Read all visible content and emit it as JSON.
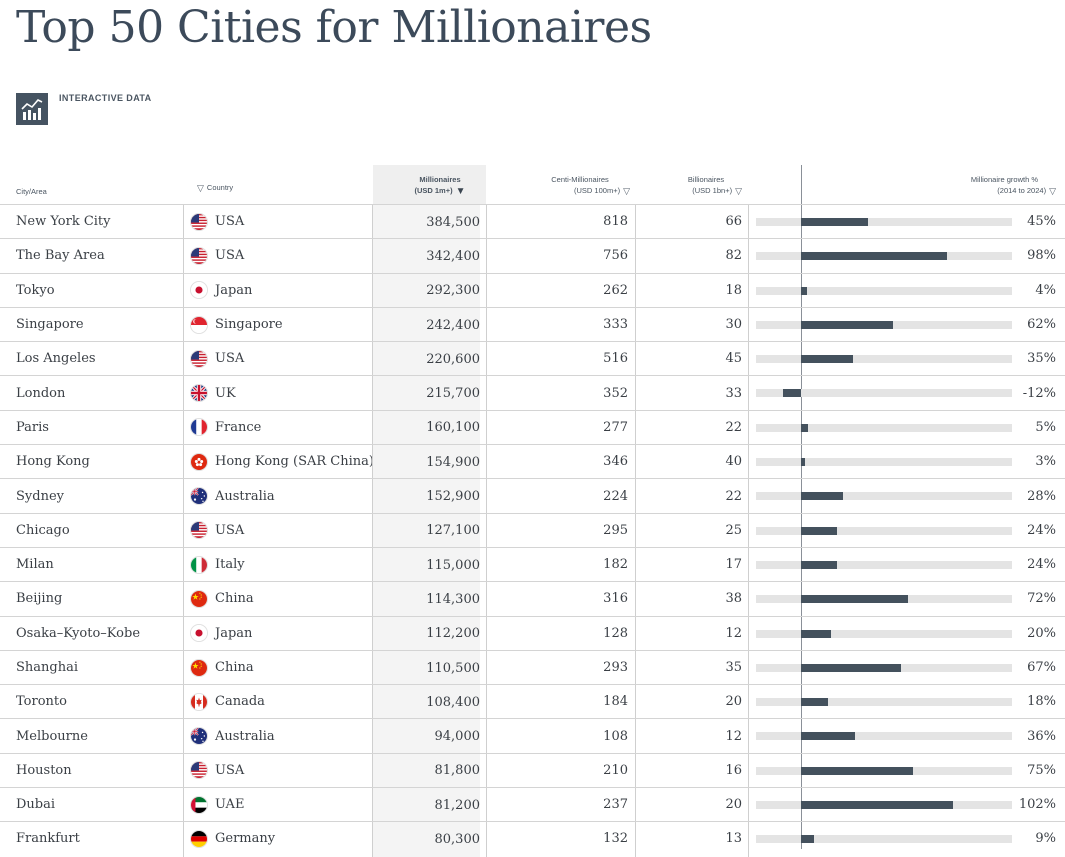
{
  "title": "Top 50 Cities for Millionaires",
  "interactive_label": "INTERACTIVE DATA",
  "headers": {
    "city": "City/Area",
    "country": "Country",
    "millionaires_1": "Millionaires",
    "millionaires_2": "(USD 1m+)",
    "centi_1": "Centi-Millionaires",
    "centi_2": "(USD 100m+)",
    "billionaires_1": "Billionaires",
    "billionaires_2": "(USD 1bn+)",
    "growth_1": "Millionaire growth %",
    "growth_2": "(2014 to 2024)"
  },
  "colors": {
    "bar": "#44515d",
    "track": "#e4e4e4",
    "accent": "#455361"
  },
  "rows": [
    {
      "city": "New York City",
      "country": "USA",
      "flag": "us",
      "millionaires": "384,500",
      "centi": "818",
      "billionaires": "66",
      "growth": "45%",
      "growth_value": 45
    },
    {
      "city": "The Bay Area",
      "country": "USA",
      "flag": "us",
      "millionaires": "342,400",
      "centi": "756",
      "billionaires": "82",
      "growth": "98%",
      "growth_value": 98
    },
    {
      "city": "Tokyo",
      "country": "Japan",
      "flag": "jp",
      "millionaires": "292,300",
      "centi": "262",
      "billionaires": "18",
      "growth": "4%",
      "growth_value": 4
    },
    {
      "city": "Singapore",
      "country": "Singapore",
      "flag": "sg",
      "millionaires": "242,400",
      "centi": "333",
      "billionaires": "30",
      "growth": "62%",
      "growth_value": 62
    },
    {
      "city": "Los Angeles",
      "country": "USA",
      "flag": "us",
      "millionaires": "220,600",
      "centi": "516",
      "billionaires": "45",
      "growth": "35%",
      "growth_value": 35
    },
    {
      "city": "London",
      "country": "UK",
      "flag": "uk",
      "millionaires": "215,700",
      "centi": "352",
      "billionaires": "33",
      "growth": "-12%",
      "growth_value": -12
    },
    {
      "city": "Paris",
      "country": "France",
      "flag": "fr",
      "millionaires": "160,100",
      "centi": "277",
      "billionaires": "22",
      "growth": "5%",
      "growth_value": 5
    },
    {
      "city": "Hong Kong",
      "country": "Hong Kong (SAR China)",
      "flag": "hk",
      "millionaires": "154,900",
      "centi": "346",
      "billionaires": "40",
      "growth": "3%",
      "growth_value": 3
    },
    {
      "city": "Sydney",
      "country": "Australia",
      "flag": "au",
      "millionaires": "152,900",
      "centi": "224",
      "billionaires": "22",
      "growth": "28%",
      "growth_value": 28
    },
    {
      "city": "Chicago",
      "country": "USA",
      "flag": "us",
      "millionaires": "127,100",
      "centi": "295",
      "billionaires": "25",
      "growth": "24%",
      "growth_value": 24
    },
    {
      "city": "Milan",
      "country": "Italy",
      "flag": "it",
      "millionaires": "115,000",
      "centi": "182",
      "billionaires": "17",
      "growth": "24%",
      "growth_value": 24
    },
    {
      "city": "Beijing",
      "country": "China",
      "flag": "cn",
      "millionaires": "114,300",
      "centi": "316",
      "billionaires": "38",
      "growth": "72%",
      "growth_value": 72
    },
    {
      "city": "Osaka–Kyoto–Kobe",
      "country": "Japan",
      "flag": "jp",
      "millionaires": "112,200",
      "centi": "128",
      "billionaires": "12",
      "growth": "20%",
      "growth_value": 20
    },
    {
      "city": "Shanghai",
      "country": "China",
      "flag": "cn",
      "millionaires": "110,500",
      "centi": "293",
      "billionaires": "35",
      "growth": "67%",
      "growth_value": 67
    },
    {
      "city": "Toronto",
      "country": "Canada",
      "flag": "ca",
      "millionaires": "108,400",
      "centi": "184",
      "billionaires": "20",
      "growth": "18%",
      "growth_value": 18
    },
    {
      "city": "Melbourne",
      "country": "Australia",
      "flag": "au",
      "millionaires": "94,000",
      "centi": "108",
      "billionaires": "12",
      "growth": "36%",
      "growth_value": 36
    },
    {
      "city": "Houston",
      "country": "USA",
      "flag": "us",
      "millionaires": "81,800",
      "centi": "210",
      "billionaires": "16",
      "growth": "75%",
      "growth_value": 75
    },
    {
      "city": "Dubai",
      "country": "UAE",
      "flag": "ae",
      "millionaires": "81,200",
      "centi": "237",
      "billionaires": "20",
      "growth": "102%",
      "growth_value": 102
    },
    {
      "city": "Frankfurt",
      "country": "Germany",
      "flag": "de",
      "millionaires": "80,300",
      "centi": "132",
      "billionaires": "13",
      "growth": "9%",
      "growth_value": 9
    }
  ]
}
